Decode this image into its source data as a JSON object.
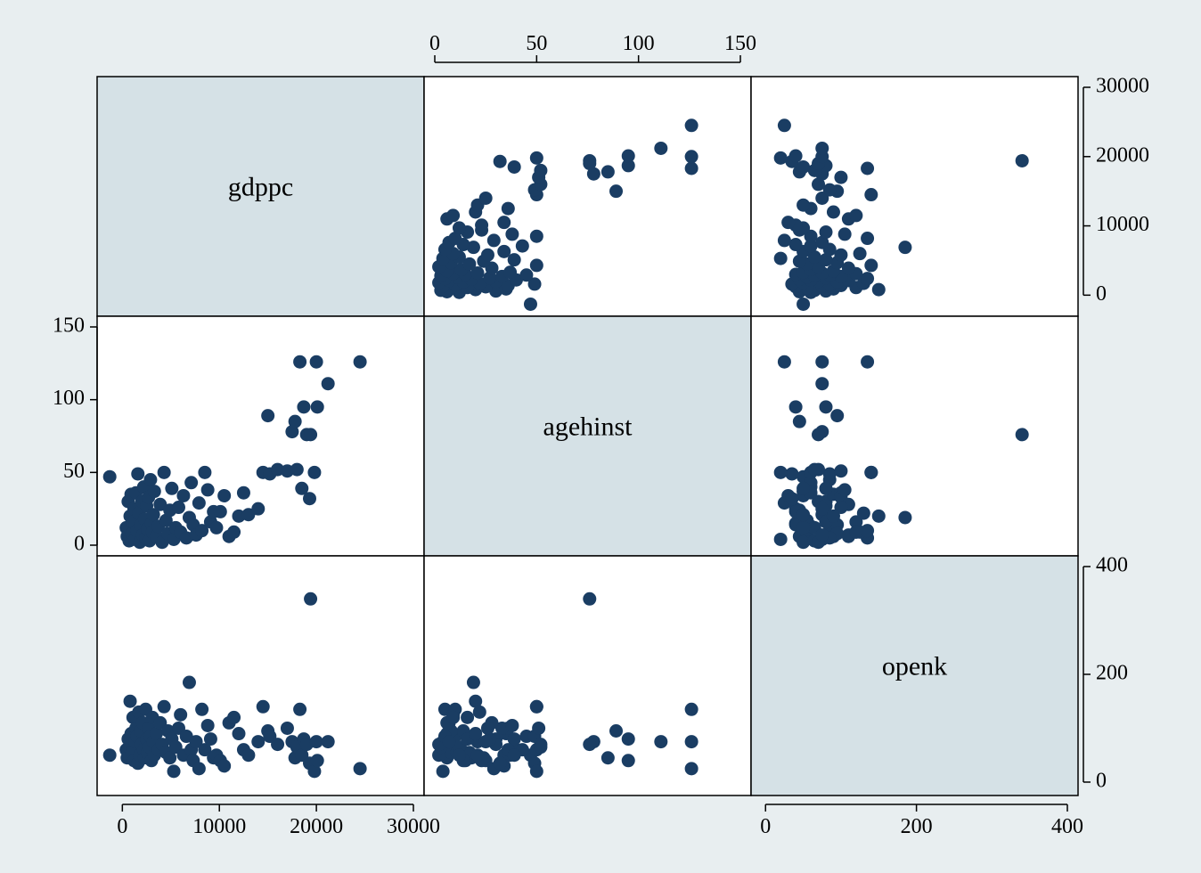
{
  "chart_data": {
    "type": "scatter",
    "subtype": "scatter-matrix",
    "title": "",
    "colors": {
      "background": "#e8eef0",
      "panel": "#ffffff",
      "diagonal_panel": "#d5e1e6",
      "marker": "#1a3d63",
      "axis": "#000000"
    },
    "grid": false,
    "variables": [
      {
        "name": "gdppc",
        "range": [
          -1500,
          30000
        ],
        "ticks": [
          0,
          10000,
          20000,
          30000
        ],
        "tick_labels": [
          "0",
          "10000",
          "20000",
          "30000"
        ]
      },
      {
        "name": "agehinst",
        "range": [
          0,
          150
        ],
        "ticks": [
          0,
          50,
          100,
          150
        ],
        "tick_labels": [
          "0",
          "50",
          "100",
          "150"
        ]
      },
      {
        "name": "openk",
        "range": [
          -5,
          400
        ],
        "ticks": [
          0,
          200,
          400
        ],
        "tick_labels": [
          "0",
          "200",
          "400"
        ]
      }
    ],
    "axes": {
      "top": {
        "variable": "agehinst",
        "ticks": [
          0,
          50,
          100,
          150
        ],
        "tick_labels": [
          "0",
          "50",
          "100",
          "150"
        ]
      },
      "left": {
        "variable": "agehinst",
        "ticks": [
          0,
          50,
          100,
          150
        ],
        "tick_labels": [
          "0",
          "50",
          "100",
          "150"
        ]
      },
      "right_top": {
        "variable": "gdppc",
        "ticks": [
          0,
          10000,
          20000,
          30000
        ],
        "tick_labels": [
          "0",
          "10000",
          "20000",
          "30000"
        ]
      },
      "right_bottom": {
        "variable": "openk",
        "ticks": [
          0,
          200,
          400
        ],
        "tick_labels": [
          "0",
          "200",
          "400"
        ]
      },
      "bottom_left": {
        "variable": "gdppc",
        "ticks": [
          0,
          10000,
          20000,
          30000
        ],
        "tick_labels": [
          "0",
          "10000",
          "20000",
          "30000"
        ]
      },
      "bottom_right": {
        "variable": "openk",
        "ticks": [
          0,
          200,
          400
        ],
        "tick_labels": [
          "0",
          "200",
          "400"
        ]
      }
    },
    "observations": [
      [
        -1300,
        47,
        50
      ],
      [
        400,
        12,
        60
      ],
      [
        500,
        6,
        45
      ],
      [
        600,
        30,
        80
      ],
      [
        700,
        3,
        65
      ],
      [
        800,
        20,
        150
      ],
      [
        900,
        35,
        90
      ],
      [
        1000,
        8,
        55
      ],
      [
        1100,
        16,
        120
      ],
      [
        1200,
        25,
        40
      ],
      [
        1300,
        4,
        75
      ],
      [
        1400,
        36,
        100
      ],
      [
        1500,
        10,
        85
      ],
      [
        1600,
        49,
        35
      ],
      [
        1700,
        22,
        130
      ],
      [
        1800,
        2,
        50
      ],
      [
        1900,
        14,
        95
      ],
      [
        2000,
        30,
        70
      ],
      [
        2100,
        7,
        110
      ],
      [
        2200,
        40,
        60
      ],
      [
        2300,
        18,
        45
      ],
      [
        2400,
        5,
        135
      ],
      [
        2500,
        27,
        80
      ],
      [
        2600,
        11,
        55
      ],
      [
        2700,
        33,
        100
      ],
      [
        2800,
        3,
        65
      ],
      [
        2900,
        45,
        85
      ],
      [
        3000,
        15,
        40
      ],
      [
        3100,
        9,
        120
      ],
      [
        3200,
        21,
        75
      ],
      [
        3300,
        37,
        50
      ],
      [
        3500,
        6,
        90
      ],
      [
        3700,
        13,
        60
      ],
      [
        3900,
        28,
        110
      ],
      [
        4100,
        2,
        70
      ],
      [
        4300,
        50,
        140
      ],
      [
        4500,
        17,
        55
      ],
      [
        4700,
        8,
        95
      ],
      [
        4900,
        24,
        45
      ],
      [
        5100,
        39,
        80
      ],
      [
        5300,
        4,
        20
      ],
      [
        5500,
        12,
        65
      ],
      [
        5800,
        26,
        100
      ],
      [
        6000,
        9,
        125
      ],
      [
        6300,
        34,
        50
      ],
      [
        6600,
        5,
        85
      ],
      [
        6900,
        19,
        185
      ],
      [
        7100,
        43,
        60
      ],
      [
        7300,
        14,
        40
      ],
      [
        7600,
        7,
        75
      ],
      [
        7900,
        29,
        25
      ],
      [
        8200,
        10,
        135
      ],
      [
        8500,
        50,
        60
      ],
      [
        8800,
        38,
        105
      ],
      [
        9100,
        16,
        80
      ],
      [
        9400,
        23,
        45
      ],
      [
        9700,
        12,
        50
      ],
      [
        10100,
        23,
        40
      ],
      [
        10500,
        34,
        30
      ],
      [
        11000,
        6,
        110
      ],
      [
        11500,
        9,
        120
      ],
      [
        12000,
        20,
        90
      ],
      [
        12500,
        36,
        60
      ],
      [
        13000,
        21,
        50
      ],
      [
        14000,
        25,
        75
      ],
      [
        14500,
        50,
        140
      ],
      [
        15000,
        89,
        95
      ],
      [
        15200,
        49,
        85
      ],
      [
        16000,
        52,
        70
      ],
      [
        17000,
        51,
        100
      ],
      [
        17500,
        78,
        75
      ],
      [
        17800,
        85,
        45
      ],
      [
        18000,
        52,
        65
      ],
      [
        18300,
        126,
        135
      ],
      [
        18500,
        39,
        50
      ],
      [
        18700,
        95,
        80
      ],
      [
        19000,
        76,
        70
      ],
      [
        19300,
        32,
        35
      ],
      [
        19400,
        76,
        340
      ],
      [
        19800,
        50,
        20
      ],
      [
        20000,
        126,
        75
      ],
      [
        20100,
        95,
        40
      ],
      [
        21200,
        111,
        75
      ],
      [
        24500,
        126,
        25
      ]
    ]
  }
}
